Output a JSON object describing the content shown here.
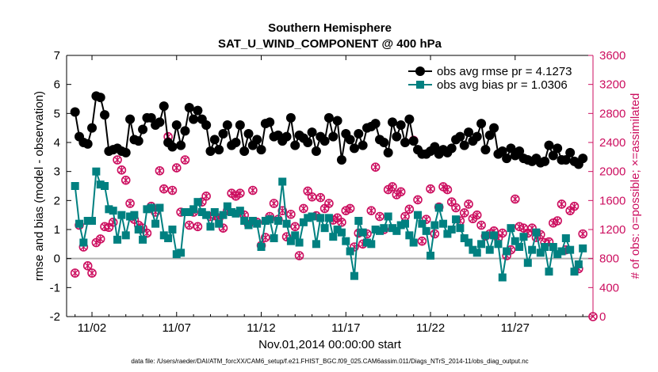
{
  "chart_data": {
    "type": "line",
    "title": "Southern Hemisphere",
    "subtitle": "SAT_U_WIND_COMPONENT @ 400 hPa",
    "xlabel": "Nov.01,2014 00:00:00 start",
    "ylabel": "rmse and bias (model - observation)",
    "y2label": "# of obs: o=possible; ×=assimilated",
    "footnote": "data file: /Users/raeder/DAI/ATM_forcXX/CAM6_setup/f.e21.FHIST_BGC.f09_025.CAM6assim.011/Diags_NTrS_2014-11/obs_diag_output.nc",
    "xlim": [
      0.5,
      31.6
    ],
    "ylim": [
      -2,
      7
    ],
    "y2lim": [
      0,
      3600
    ],
    "x_ticks": [
      2,
      7,
      12,
      17,
      22,
      27
    ],
    "x_tick_labels": [
      "11/02",
      "11/07",
      "11/12",
      "11/17",
      "11/22",
      "11/27"
    ],
    "y_ticks": [
      "-2",
      "-1",
      "0",
      "1",
      "2",
      "3",
      "4",
      "5",
      "6",
      "7"
    ],
    "y2_ticks": [
      "0",
      "400",
      "800",
      "1200",
      "1600",
      "2000",
      "2400",
      "2800",
      "3200",
      "3600"
    ],
    "colors": {
      "rmse": "#000000",
      "bias": "#008080",
      "counts": "#cc0e5f",
      "zero": "#b0b0b0"
    },
    "series": [
      {
        "name": "obs avg rmse pr = 4.1273",
        "x": [
          1.0,
          1.25,
          1.5,
          1.75,
          2.0,
          2.25,
          2.5,
          2.75,
          3.0,
          3.25,
          3.5,
          3.75,
          4.0,
          4.25,
          4.5,
          4.75,
          5.0,
          5.25,
          5.5,
          5.75,
          6.0,
          6.25,
          6.5,
          6.75,
          7.0,
          7.25,
          7.5,
          7.75,
          8.0,
          8.25,
          8.5,
          8.75,
          9.0,
          9.25,
          9.5,
          9.75,
          10.0,
          10.25,
          10.5,
          10.75,
          11.0,
          11.25,
          11.5,
          11.75,
          12.0,
          12.25,
          12.5,
          12.75,
          13.0,
          13.25,
          13.5,
          13.75,
          14.0,
          14.25,
          14.5,
          14.75,
          15.0,
          15.25,
          15.5,
          15.75,
          16.0,
          16.25,
          16.5,
          16.75,
          17.0,
          17.25,
          17.5,
          17.75,
          18.0,
          18.25,
          18.5,
          18.75,
          19.0,
          19.25,
          19.5,
          19.75,
          20.0,
          20.25,
          20.5,
          20.75,
          21.0,
          21.25,
          21.5,
          21.75,
          22.0,
          22.25,
          22.5,
          22.75,
          23.0,
          23.25,
          23.5,
          23.75,
          24.0,
          24.25,
          24.5,
          24.75,
          25.0,
          25.25,
          25.5,
          25.75,
          26.0,
          26.25,
          26.5,
          26.75,
          27.0,
          27.25,
          27.5,
          27.75,
          28.0,
          28.25,
          28.5,
          28.75,
          29.0,
          29.25,
          29.5,
          29.75,
          30.0,
          30.25,
          30.5,
          30.75,
          31.0
        ],
        "values": [
          5.05,
          4.2,
          4.0,
          3.95,
          4.5,
          5.6,
          5.55,
          4.95,
          3.7,
          3.75,
          3.8,
          3.7,
          3.65,
          4.8,
          4.1,
          4.05,
          4.45,
          4.85,
          4.85,
          4.6,
          4.7,
          5.25,
          4.0,
          3.85,
          4.6,
          3.9,
          4.4,
          5.2,
          4.8,
          5.1,
          4.8,
          4.6,
          3.7,
          4.1,
          3.75,
          4.3,
          4.6,
          3.9,
          4.0,
          4.6,
          3.7,
          4.3,
          3.9,
          4.1,
          3.75,
          4.65,
          4.7,
          4.2,
          4.25,
          4.05,
          4.2,
          4.85,
          3.9,
          4.25,
          4.15,
          4.0,
          4.35,
          3.7,
          4.2,
          4.05,
          4.85,
          4.2,
          4.75,
          3.4,
          4.3,
          4.1,
          3.8,
          4.3,
          3.9,
          4.5,
          4.55,
          4.65,
          4.1,
          4.0,
          3.65,
          4.7,
          4.2,
          4.6,
          4.0,
          4.8,
          4.05,
          3.75,
          3.6,
          3.6,
          3.7,
          3.85,
          3.6,
          3.75,
          3.65,
          3.8,
          4.1,
          4.2,
          3.9,
          4.35,
          4.05,
          4.2,
          4.65,
          3.75,
          4.25,
          4.5,
          3.6,
          3.7,
          3.45,
          3.8,
          3.55,
          3.7,
          3.45,
          3.4,
          3.35,
          3.45,
          3.3,
          3.35,
          3.9,
          3.55,
          3.8,
          3.4,
          3.4,
          3.65,
          3.35,
          3.25,
          3.45
        ]
      },
      {
        "name": "obs avg bias pr = 1.0306",
        "x": [
          1.0,
          1.25,
          1.5,
          1.75,
          2.0,
          2.25,
          2.5,
          2.75,
          3.0,
          3.25,
          3.5,
          3.75,
          4.0,
          4.25,
          4.5,
          4.75,
          5.0,
          5.25,
          5.5,
          5.75,
          6.0,
          6.25,
          6.5,
          6.75,
          7.0,
          7.25,
          7.5,
          7.75,
          8.0,
          8.25,
          8.5,
          8.75,
          9.0,
          9.25,
          9.5,
          9.75,
          10.0,
          10.25,
          10.5,
          10.75,
          11.0,
          11.25,
          11.5,
          11.75,
          12.0,
          12.25,
          12.5,
          12.75,
          13.0,
          13.25,
          13.5,
          13.75,
          14.0,
          14.25,
          14.5,
          14.75,
          15.0,
          15.25,
          15.5,
          15.75,
          16.0,
          16.25,
          16.5,
          16.75,
          17.0,
          17.25,
          17.5,
          17.75,
          18.0,
          18.25,
          18.5,
          18.75,
          19.0,
          19.25,
          19.5,
          19.75,
          20.0,
          20.25,
          20.5,
          20.75,
          21.0,
          21.25,
          21.5,
          21.75,
          22.0,
          22.25,
          22.5,
          22.75,
          23.0,
          23.25,
          23.5,
          23.75,
          24.0,
          24.25,
          24.5,
          24.75,
          25.0,
          25.25,
          25.5,
          25.75,
          26.0,
          26.25,
          26.5,
          26.75,
          27.0,
          27.25,
          27.5,
          27.75,
          28.0,
          28.25,
          28.5,
          28.75,
          29.0,
          29.25,
          29.5,
          29.75,
          30.0,
          30.25,
          30.5,
          30.75,
          31.0
        ],
        "values": [
          2.5,
          1.2,
          0.55,
          1.3,
          1.3,
          3.0,
          2.55,
          2.5,
          1.7,
          1.65,
          0.65,
          1.5,
          0.8,
          1.45,
          1.5,
          1.0,
          0.65,
          1.7,
          1.75,
          1.2,
          1.75,
          0.8,
          0.7,
          1.0,
          0.15,
          0.2,
          1.6,
          1.6,
          1.7,
          1.95,
          1.6,
          1.5,
          1.1,
          1.6,
          1.2,
          1.5,
          1.8,
          1.6,
          1.55,
          1.65,
          1.3,
          1.15,
          1.3,
          1.2,
          0.4,
          1.3,
          1.35,
          0.7,
          1.3,
          2.65,
          1.2,
          0.6,
          0.8,
          0.55,
          1.25,
          1.4,
          1.45,
          0.5,
          1.4,
          1.05,
          1.4,
          0.75,
          1.0,
          0.9,
          0.6,
          0.25,
          -0.6,
          1.3,
          0.9,
          0.55,
          0.5,
          1.0,
          0.95,
          1.05,
          1.45,
          1.05,
          0.95,
          1.15,
          1.2,
          0.8,
          0.55,
          1.5,
          1.2,
          0.95,
          0.1,
          1.15,
          1.75,
          1.2,
          0.85,
          1.0,
          1.35,
          1.05,
          0.7,
          0.55,
          0.3,
          0.2,
          0.5,
          0.8,
          0.3,
          0.8,
          0.5,
          -0.65,
          0.25,
          1.05,
          0.6,
          0.4,
          0.75,
          -0.15,
          0.3,
          0.9,
          0.2,
          0.4,
          -0.45,
          0.4,
          0.15,
          0.25,
          0.7,
          0.3,
          -0.45,
          -0.2,
          0.35
        ]
      },
      {
        "name": "obs possible",
        "axis": "right",
        "x": [
          1.0,
          1.25,
          1.5,
          1.75,
          2.0,
          2.25,
          2.5,
          2.75,
          3.0,
          3.25,
          3.5,
          3.75,
          4.0,
          4.25,
          4.5,
          4.75,
          5.0,
          5.25,
          5.5,
          5.75,
          6.0,
          6.25,
          6.5,
          6.75,
          7.0,
          7.25,
          7.5,
          7.75,
          8.0,
          8.25,
          8.5,
          8.75,
          9.0,
          9.25,
          9.5,
          9.75,
          10.0,
          10.25,
          10.5,
          10.75,
          11.0,
          11.25,
          11.5,
          11.75,
          12.0,
          12.25,
          12.5,
          12.75,
          13.0,
          13.25,
          13.5,
          13.75,
          14.0,
          14.25,
          14.5,
          14.75,
          15.0,
          15.25,
          15.5,
          15.75,
          16.0,
          16.25,
          16.5,
          16.75,
          17.0,
          17.25,
          17.5,
          17.75,
          18.0,
          18.25,
          18.5,
          18.75,
          19.0,
          19.25,
          19.5,
          19.75,
          20.0,
          20.25,
          20.5,
          20.75,
          21.0,
          21.25,
          21.5,
          21.75,
          22.0,
          22.25,
          22.5,
          22.75,
          23.0,
          23.25,
          23.5,
          23.75,
          24.0,
          24.25,
          24.5,
          24.75,
          25.0,
          25.25,
          25.5,
          25.75,
          26.0,
          26.25,
          26.5,
          26.75,
          27.0,
          27.25,
          27.5,
          27.75,
          28.0,
          28.25,
          28.5,
          28.75,
          29.0,
          29.25,
          29.5,
          29.75,
          30.0,
          30.25,
          30.5,
          30.75,
          31.0
        ],
        "values": [
          600,
          1260,
          960,
          700,
          600,
          1020,
          1070,
          1240,
          1230,
          1300,
          2160,
          2020,
          1880,
          1560,
          1340,
          1260,
          1220,
          1150,
          1520,
          1440,
          2010,
          1760,
          2480,
          1740,
          2050,
          1440,
          2160,
          1260,
          1440,
          1240,
          1580,
          1660,
          1380,
          1390,
          1360,
          1220,
          1460,
          1700,
          1660,
          1700,
          1400,
          1270,
          1740,
          1300,
          980,
          1090,
          1380,
          1560,
          1340,
          1460,
          1100,
          1410,
          1240,
          840,
          1490,
          1730,
          1650,
          1390,
          1640,
          1490,
          1560,
          1330,
          1360,
          1300,
          1460,
          1490,
          960,
          1150,
          1000,
          1140,
          1460,
          2060,
          1380,
          1200,
          1750,
          1790,
          1680,
          1720,
          1380,
          1480,
          2430,
          1610,
          1040,
          1340,
          1760,
          1140,
          1510,
          1790,
          1750,
          1580,
          1500,
          1320,
          1430,
          1550,
          1350,
          1400,
          1260,
          1110,
          1140,
          1180,
          1080,
          1150,
          840,
          920,
          1620,
          1240,
          1220,
          1150,
          1220,
          1090,
          1130,
          1020,
          1030,
          1290,
          1320,
          1550,
          920,
          1460,
          1520,
          660,
          1140
        ]
      },
      {
        "name": "obs assimilated",
        "axis": "right",
        "x": [
          1.0,
          1.25,
          1.5,
          1.75,
          2.0,
          2.25,
          2.5,
          2.75,
          3.0,
          3.25,
          3.5,
          3.75,
          4.0,
          4.25,
          4.5,
          4.75,
          5.0,
          5.25,
          5.5,
          5.75,
          6.0,
          6.25,
          6.5,
          6.75,
          7.0,
          7.25,
          7.5,
          7.75,
          8.0,
          8.25,
          8.5,
          8.75,
          9.0,
          9.25,
          9.5,
          9.75,
          10.0,
          10.25,
          10.5,
          10.75,
          11.0,
          11.25,
          11.5,
          11.75,
          12.0,
          12.25,
          12.5,
          12.75,
          13.0,
          13.25,
          13.5,
          13.75,
          14.0,
          14.25,
          14.5,
          14.75,
          15.0,
          15.25,
          15.5,
          15.75,
          16.0,
          16.25,
          16.5,
          16.75,
          17.0,
          17.25,
          17.5,
          17.75,
          18.0,
          18.25,
          18.5,
          18.75,
          19.0,
          19.25,
          19.5,
          19.75,
          20.0,
          20.25,
          20.5,
          20.75,
          21.0,
          21.25,
          21.5,
          21.75,
          22.0,
          22.25,
          22.5,
          22.75,
          23.0,
          23.25,
          23.5,
          23.75,
          24.0,
          24.25,
          24.5,
          24.75,
          25.0,
          25.25,
          25.5,
          25.75,
          26.0,
          26.25,
          26.5,
          26.75,
          27.0,
          27.25,
          27.5,
          27.75,
          28.0,
          28.25,
          28.5,
          28.75,
          29.0,
          29.25,
          29.5,
          29.75,
          30.0,
          30.25,
          30.5,
          30.75,
          31.0
        ],
        "values": [
          600,
          1260,
          960,
          700,
          600,
          1020,
          1070,
          1240,
          1230,
          1300,
          2160,
          2020,
          1880,
          1560,
          1340,
          1260,
          1220,
          1150,
          1520,
          1440,
          2010,
          1760,
          2480,
          1740,
          2050,
          1440,
          2160,
          1260,
          1440,
          1240,
          1580,
          1660,
          1380,
          1390,
          1360,
          1220,
          1460,
          1700,
          1660,
          1700,
          1400,
          1270,
          1740,
          1300,
          980,
          1090,
          1380,
          1560,
          1340,
          1460,
          1100,
          1410,
          1240,
          840,
          1490,
          1730,
          1650,
          1390,
          1640,
          1490,
          1560,
          1330,
          1360,
          1300,
          1460,
          1490,
          960,
          1150,
          1000,
          1140,
          1460,
          2060,
          1380,
          1200,
          1750,
          1790,
          1680,
          1720,
          1380,
          1480,
          2430,
          1610,
          1040,
          1340,
          1760,
          1140,
          1510,
          1790,
          1750,
          1580,
          1500,
          1320,
          1430,
          1550,
          1350,
          1400,
          1260,
          1110,
          1140,
          1180,
          1080,
          1150,
          840,
          920,
          1620,
          1240,
          1220,
          1150,
          1220,
          1090,
          1130,
          1020,
          1030,
          1290,
          1320,
          1550,
          920,
          1460,
          1520,
          660,
          1140
        ]
      }
    ],
    "legend": [
      "obs avg rmse pr = 4.1273",
      "obs avg bias pr = 1.0306"
    ],
    "legend_position": "top-right"
  }
}
